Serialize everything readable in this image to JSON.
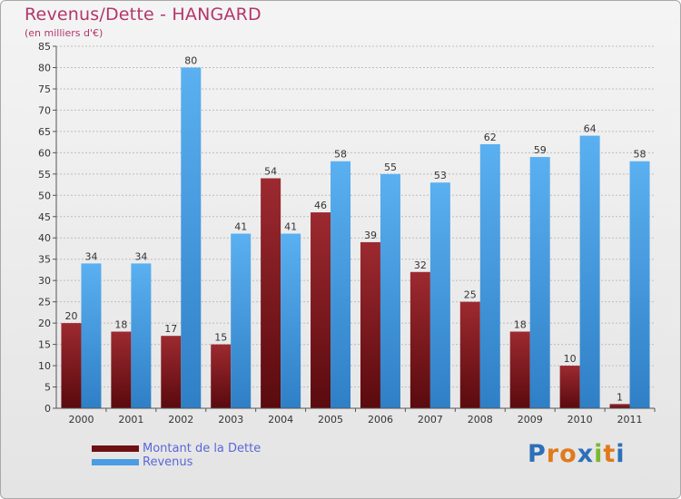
{
  "header": {
    "title": "Revenus/Dette - HANGARD",
    "subtitle": "(en milliers d'€)"
  },
  "legend": {
    "items": [
      {
        "label": "Montant de la Dette",
        "color": "#6e0f14"
      },
      {
        "label": "Revenus",
        "color": "#4a9de2"
      }
    ]
  },
  "logo": {
    "text": "Proxiti",
    "letter_colors": [
      "#2d6fb8",
      "#e07a1b",
      "#e07a1b",
      "#2d6fb8",
      "#7cb82f",
      "#e07a1b",
      "#2d6fb8"
    ]
  },
  "colors": {
    "dette": "#6e0f14",
    "dette_light": "#a83a40",
    "revenus": "#4aa3e8",
    "revenus_dark": "#2f7fc6",
    "grid": "#bdbdbd",
    "axis": "#555555"
  },
  "chart_data": {
    "type": "bar",
    "title": "Revenus/Dette - HANGARD",
    "subtitle": "(en milliers d'€)",
    "categories": [
      "2000",
      "2001",
      "2002",
      "2003",
      "2004",
      "2005",
      "2006",
      "2007",
      "2008",
      "2009",
      "2010",
      "2011"
    ],
    "series": [
      {
        "name": "Montant de la Dette",
        "values": [
          20,
          18,
          17,
          15,
          54,
          46,
          39,
          32,
          25,
          18,
          10,
          1
        ]
      },
      {
        "name": "Revenus",
        "values": [
          34,
          34,
          80,
          41,
          41,
          58,
          55,
          53,
          62,
          59,
          64,
          58
        ]
      }
    ],
    "ylim": [
      0,
      85
    ],
    "yticks": [
      0,
      5,
      10,
      15,
      20,
      25,
      30,
      35,
      40,
      45,
      50,
      55,
      60,
      65,
      70,
      75,
      80,
      85
    ],
    "grid": true,
    "legend": "bottom-left"
  }
}
